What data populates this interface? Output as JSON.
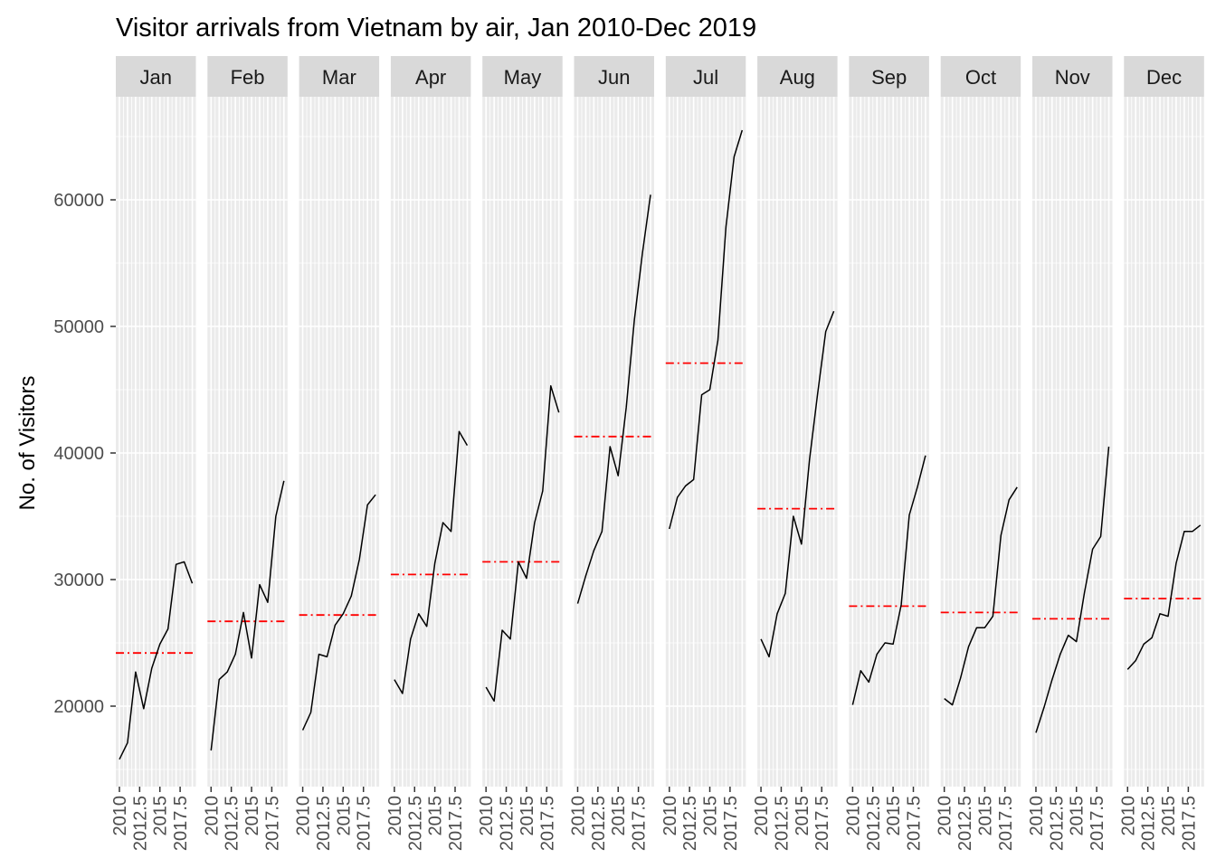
{
  "chart_data": {
    "type": "line",
    "title": "Visitor arrivals from Vietnam by air, Jan 2010-Dec 2019",
    "xlabel": "",
    "ylabel": "No. of Visitors",
    "facet_by": "month",
    "facets": [
      "Jan",
      "Feb",
      "Mar",
      "Apr",
      "May",
      "Jun",
      "Jul",
      "Aug",
      "Sep",
      "Oct",
      "Nov",
      "Dec"
    ],
    "x": [
      2010,
      2011,
      2012,
      2013,
      2014,
      2015,
      2016,
      2017,
      2018,
      2019
    ],
    "x_tick_labels": [
      "2010",
      "2012.5",
      "2015",
      "2017.5"
    ],
    "ylim": [
      13500,
      68500
    ],
    "y_ticks": [
      20000,
      30000,
      40000,
      50000,
      60000
    ],
    "y_tick_labels": [
      "20000",
      "30000",
      "40000",
      "50000",
      "60000"
    ],
    "grid": true,
    "legend": "none",
    "mean_line_style": "red dash-dot",
    "series": [
      {
        "name": "Jan",
        "values": [
          15800,
          17100,
          22700,
          19800,
          23000,
          24900,
          26100,
          31200,
          31400,
          29700
        ],
        "mean": 24200
      },
      {
        "name": "Feb",
        "values": [
          16500,
          22100,
          22700,
          24100,
          27400,
          23800,
          29600,
          28200,
          35000,
          37800
        ],
        "mean": 26700
      },
      {
        "name": "Mar",
        "values": [
          18100,
          19500,
          24100,
          23900,
          26400,
          27300,
          28700,
          31600,
          35900,
          36700
        ],
        "mean": 27200
      },
      {
        "name": "Apr",
        "values": [
          22100,
          21000,
          25300,
          27300,
          26300,
          31300,
          34500,
          33800,
          41700,
          40600
        ],
        "mean": 30400
      },
      {
        "name": "May",
        "values": [
          21500,
          20400,
          26000,
          25300,
          31400,
          30100,
          34500,
          37000,
          45300,
          43200
        ],
        "mean": 31400
      },
      {
        "name": "Jun",
        "values": [
          28100,
          30300,
          32300,
          33800,
          40500,
          38200,
          43600,
          50500,
          55800,
          60400
        ],
        "mean": 41300
      },
      {
        "name": "Jul",
        "values": [
          34000,
          36500,
          37400,
          37900,
          44600,
          45000,
          48900,
          57900,
          63400,
          65500
        ],
        "mean": 47100
      },
      {
        "name": "Aug",
        "values": [
          25300,
          23900,
          27300,
          28900,
          35000,
          32800,
          39500,
          44700,
          49600,
          51200
        ],
        "mean": 35600
      },
      {
        "name": "Sep",
        "values": [
          20100,
          22800,
          21900,
          24100,
          25000,
          24900,
          28000,
          35100,
          37300,
          39800
        ],
        "mean": 27900
      },
      {
        "name": "Oct",
        "values": [
          20600,
          20100,
          22200,
          24700,
          26200,
          26200,
          27100,
          33500,
          36300,
          37300
        ],
        "mean": 27400
      },
      {
        "name": "Nov",
        "values": [
          17900,
          19900,
          22100,
          24100,
          25600,
          25100,
          29000,
          32400,
          33400,
          40500
        ],
        "mean": 26900
      },
      {
        "name": "Dec",
        "values": [
          22900,
          23600,
          24900,
          25400,
          27300,
          27100,
          31300,
          33800,
          33800,
          34300
        ],
        "mean": 28500
      }
    ],
    "colors": {
      "line": "#000000",
      "mean_line": "#ff0000",
      "panel_background": "#ebebeb",
      "strip_background": "#d9d9d9",
      "gridline": "#ffffff"
    }
  }
}
